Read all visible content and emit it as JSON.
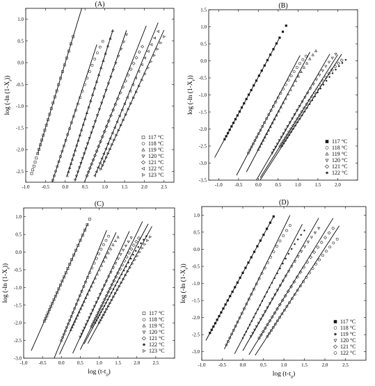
{
  "chart_data": [
    {
      "type": "scatter",
      "title": "(A)",
      "xlabel": "",
      "ylabel": "log (-ln (1-X_t))",
      "xlim": [
        -1.0,
        2.75
      ],
      "ylim": [
        -2.75,
        1.25
      ],
      "xticks": [
        "-1.0",
        "-0.5",
        "0.0",
        "0.5",
        "1.0",
        "1.5",
        "2.0",
        "2.5"
      ],
      "yticks": [
        "-2.5",
        "-2.0",
        "-1.5",
        "-1.0",
        "-0.5",
        "0.0",
        "0.5",
        "1.0"
      ],
      "legend_position": "bottom-right",
      "series": [
        {
          "name": "117 °C",
          "marker": "square-open",
          "x0": -0.85,
          "xend": 0.2,
          "fx0": -0.7,
          "fx1": 0.45,
          "y0": -2.55,
          "slope": 3.0,
          "curve": 0.0
        },
        {
          "name": "118 °C",
          "marker": "circle-open",
          "x0": -0.35,
          "xend": 0.95,
          "fx0": -0.4,
          "fx1": 0.8,
          "y0": -2.8,
          "slope": 2.8,
          "curve": 0.35
        },
        {
          "name": "119 °C",
          "marker": "triangle-up-open",
          "x0": 0.05,
          "xend": 1.2,
          "fx0": 0.05,
          "fx1": 1.2,
          "y0": -2.6,
          "slope": 2.9,
          "curve": 0.0
        },
        {
          "name": "120 °C",
          "marker": "triangle-down-open",
          "x0": 0.25,
          "xend": 1.55,
          "fx0": 0.25,
          "fx1": 1.55,
          "y0": -2.7,
          "slope": 2.65,
          "curve": 0.1
        },
        {
          "name": "121 °C",
          "marker": "diamond-open",
          "x0": 0.55,
          "xend": 1.95,
          "fx0": 0.35,
          "fx1": 2.05,
          "y0": -2.6,
          "slope": 2.3,
          "curve": 0.25
        },
        {
          "name": "122 °C",
          "marker": "triangle-left-open",
          "x0": 0.75,
          "xend": 2.35,
          "fx0": 0.75,
          "fx1": 2.35,
          "y0": -2.6,
          "slope": 2.2,
          "curve": 0.2
        },
        {
          "name": "123 °C",
          "marker": "triangle-right-open",
          "x0": 0.9,
          "xend": 2.5,
          "fx0": 0.9,
          "fx1": 2.5,
          "y0": -2.45,
          "slope": 2.0,
          "curve": 0.15
        }
      ]
    },
    {
      "type": "scatter",
      "title": "(B)",
      "xlabel": "",
      "ylabel": "log (-ln (1-X_t))",
      "xlim": [
        -1.25,
        2.5
      ],
      "ylim": [
        -3.5,
        1.5
      ],
      "xticks": [
        "-1.0",
        "-0.5",
        "0.0",
        "0.5",
        "1.0",
        "1.5",
        "2.0"
      ],
      "yticks": [
        "-3.5",
        "-3.0",
        "-2.5",
        "-2.0",
        "-1.5",
        "-1.0",
        "-0.5",
        "0.0",
        "0.5",
        "1.0",
        "1.5"
      ],
      "legend_position": "bottom-right",
      "series": [
        {
          "name": "117 °C",
          "marker": "square-filled",
          "x0": -0.85,
          "xend": 0.7,
          "fx0": -1.1,
          "fx1": 0.55,
          "y0": -2.3,
          "slope": 2.15,
          "curve": 0.0
        },
        {
          "name": "118 °C",
          "marker": "circle-open",
          "x0": -0.25,
          "xend": 1.2,
          "fx0": -0.55,
          "fx1": 1.05,
          "y0": -2.7,
          "slope": 2.2,
          "curve": 0.35
        },
        {
          "name": "119 °C",
          "marker": "triangle-up-open",
          "x0": 0.0,
          "xend": 1.45,
          "fx0": -0.3,
          "fx1": 1.3,
          "y0": -2.6,
          "slope": 2.2,
          "curve": 0.3
        },
        {
          "name": "120 °C",
          "marker": "triangle-down-open",
          "x0": 0.35,
          "xend": 1.95,
          "fx0": -0.1,
          "fx1": 1.8,
          "y0": -2.7,
          "slope": 2.0,
          "curve": 0.3
        },
        {
          "name": "121 °C",
          "marker": "diamond-open",
          "x0": 0.55,
          "xend": 2.1,
          "fx0": 0.05,
          "fx1": 2.0,
          "y0": -2.5,
          "slope": 1.85,
          "curve": 0.35
        },
        {
          "name": "122 °C",
          "marker": "star",
          "x0": 0.6,
          "xend": 2.2,
          "fx0": 0.05,
          "fx1": 2.1,
          "y0": -2.5,
          "slope": 1.8,
          "curve": 0.35
        }
      ]
    },
    {
      "type": "scatter",
      "title": "(C)",
      "xlabel": "log (t-t_0)",
      "ylabel": "log (-ln (1-X_t))",
      "xlim": [
        -1.0,
        3.0
      ],
      "ylim": [
        -3.0,
        1.25
      ],
      "xticks": [
        "-1.0",
        "-0.5",
        "0.0",
        "0.5",
        "1.0",
        "1.5",
        "2.0",
        "2.5"
      ],
      "yticks": [
        "-3.0",
        "-2.5",
        "-2.0",
        "-1.5",
        "-1.0",
        "-0.5",
        "0.0",
        "0.5",
        "1.0"
      ],
      "legend_position": "bottom-right",
      "series": [
        {
          "name": "117 °C",
          "marker": "square-open",
          "x0": -0.45,
          "xend": 0.75,
          "fx0": -0.8,
          "fx1": 0.7,
          "y0": -1.95,
          "slope": 2.4,
          "curve": 0.0
        },
        {
          "name": "118 °C",
          "marker": "circle-open",
          "x0": 0.0,
          "xend": 1.25,
          "fx0": -0.3,
          "fx1": 1.2,
          "y0": -2.5,
          "slope": 2.6,
          "curve": 0.3
        },
        {
          "name": "119 °C",
          "marker": "triangle-up-open",
          "x0": 0.25,
          "xend": 1.5,
          "fx0": -0.05,
          "fx1": 1.45,
          "y0": -2.2,
          "slope": 2.3,
          "curve": 0.25
        },
        {
          "name": "120 °C",
          "marker": "triangle-down-open",
          "x0": 0.5,
          "xend": 1.85,
          "fx0": 0.3,
          "fx1": 1.8,
          "y0": -2.4,
          "slope": 2.3,
          "curve": 0.3
        },
        {
          "name": "121 °C",
          "marker": "diamond-open",
          "x0": 0.8,
          "xend": 2.05,
          "fx0": 0.5,
          "fx1": 2.15,
          "y0": -2.1,
          "slope": 2.2,
          "curve": 0.25
        },
        {
          "name": "122 °C",
          "marker": "star",
          "x0": 0.9,
          "xend": 2.25,
          "fx0": 0.6,
          "fx1": 2.3,
          "y0": -2.0,
          "slope": 2.0,
          "curve": 0.25
        },
        {
          "name": "123 °C",
          "marker": "triangle-right-open",
          "x0": 1.0,
          "xend": 2.35,
          "fx0": 0.7,
          "fx1": 2.4,
          "y0": -2.0,
          "slope": 1.95,
          "curve": 0.2
        }
      ]
    },
    {
      "type": "scatter",
      "title": "(D)",
      "xlabel": "log (t-t_0)",
      "ylabel": "log (-ln (1-X_t))",
      "xlim": [
        -1.0,
        3.0
      ],
      "ylim": [
        -3.25,
        1.25
      ],
      "xticks": [
        "-1.0",
        "-0.5",
        "0.0",
        "0.5",
        "1.0",
        "1.5",
        "2.0",
        "2.5"
      ],
      "yticks": [
        "-3.0",
        "-2.5",
        "-2.0",
        "-1.5",
        "-1.0",
        "-0.5",
        "0.0",
        "0.5",
        "1.0"
      ],
      "legend_position": "bottom-right",
      "series": [
        {
          "name": "117 °C",
          "marker": "square-filled",
          "x0": -0.8,
          "xend": 0.75,
          "fx0": -0.9,
          "fx1": 0.75,
          "y0": -2.45,
          "slope": 2.2,
          "curve": 0.0
        },
        {
          "name": "118 °C",
          "marker": "circle-open",
          "x0": -0.4,
          "xend": 1.15,
          "fx0": -0.45,
          "fx1": 1.15,
          "y0": -2.8,
          "slope": 2.45,
          "curve": 0.3
        },
        {
          "name": "119 °C",
          "marker": "star",
          "x0": 0.0,
          "xend": 1.5,
          "fx0": -0.2,
          "fx1": 1.45,
          "y0": -2.6,
          "slope": 2.3,
          "curve": 0.3
        },
        {
          "name": "120 °C",
          "marker": "triangle-down-open",
          "x0": 0.2,
          "xend": 1.85,
          "fx0": 0.0,
          "fx1": 1.85,
          "y0": -2.55,
          "slope": 2.1,
          "curve": 0.3
        },
        {
          "name": "121 °C",
          "marker": "diamond-open",
          "x0": 0.4,
          "xend": 2.2,
          "fx0": 0.15,
          "fx1": 2.2,
          "y0": -2.6,
          "slope": 1.95,
          "curve": 0.3
        },
        {
          "name": "122 °C",
          "marker": "circle-open",
          "x0": 0.6,
          "xend": 2.3,
          "fx0": 0.3,
          "fx1": 2.35,
          "y0": -2.55,
          "slope": 1.85,
          "curve": 0.3
        }
      ]
    }
  ]
}
